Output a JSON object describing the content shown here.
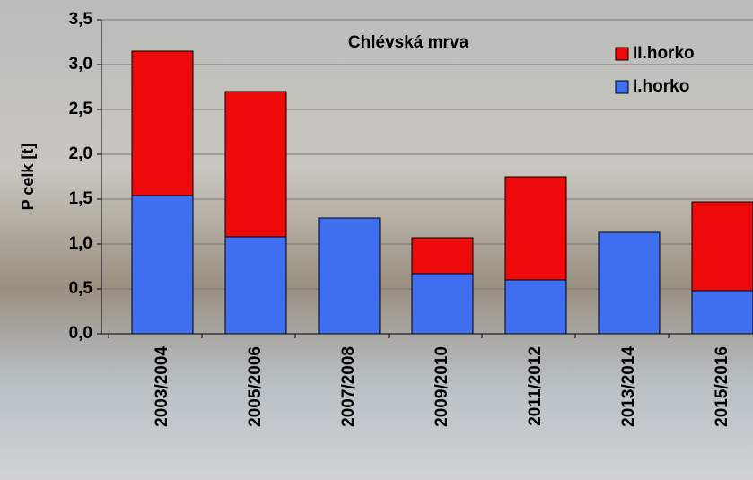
{
  "chart_data": {
    "type": "stacked_bar",
    "title": "Chlévská mrva",
    "y_label": "P celk  [t]",
    "categories": [
      "2003/2004",
      "2005/2006",
      "2007/2008",
      "2009/2010",
      "2011/2012",
      "2013/2014",
      "2015/2016"
    ],
    "series": [
      {
        "name": "I.horko",
        "color": "#3f6fef",
        "values": [
          1.54,
          1.08,
          1.29,
          0.67,
          0.6,
          1.13,
          0.48
        ]
      },
      {
        "name": "II.horko",
        "color": "#ee0a0a",
        "values": [
          1.61,
          1.62,
          null,
          0.4,
          1.15,
          null,
          0.99
        ]
      }
    ],
    "ylim": [
      0,
      3.5
    ],
    "yticks": [
      {
        "value": 0,
        "label": "0,0"
      },
      {
        "value": 0.5,
        "label": "0,5"
      },
      {
        "value": 1,
        "label": "1,0"
      },
      {
        "value": 1.5,
        "label": "1,5"
      },
      {
        "value": 2,
        "label": "2,0"
      },
      {
        "value": 2.5,
        "label": "2,5"
      },
      {
        "value": 3,
        "label": "3,0"
      },
      {
        "value": 3.5,
        "label": "3,5"
      }
    ],
    "grid": true,
    "legend": "top-right"
  }
}
